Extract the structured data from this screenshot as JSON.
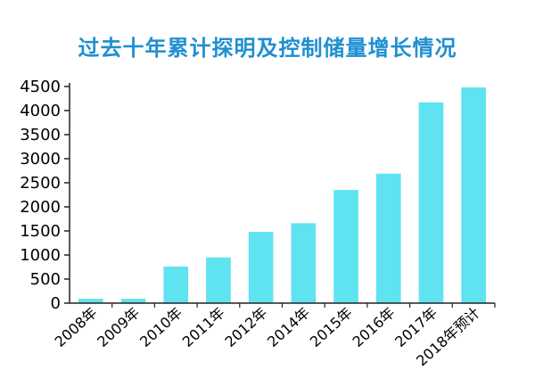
{
  "colors": {
    "title": "#1f8fd1",
    "bar": "#5fe3f1",
    "axis": "#222222"
  },
  "chart_data": {
    "type": "bar",
    "title": "过去十年累计探明及控制储量增长情况",
    "categories": [
      "2008年",
      "2009年",
      "2010年",
      "2011年",
      "2012年",
      "2014年",
      "2015年",
      "2016年",
      "2017年",
      "2018年预计"
    ],
    "values": [
      90,
      90,
      760,
      950,
      1480,
      1660,
      2350,
      2690,
      4170,
      4480
    ],
    "ylim": [
      0,
      4500
    ],
    "yticks": [
      0,
      500,
      1000,
      1500,
      2000,
      2500,
      3000,
      3500,
      4000,
      4500
    ],
    "grid": false,
    "legend": "none"
  }
}
